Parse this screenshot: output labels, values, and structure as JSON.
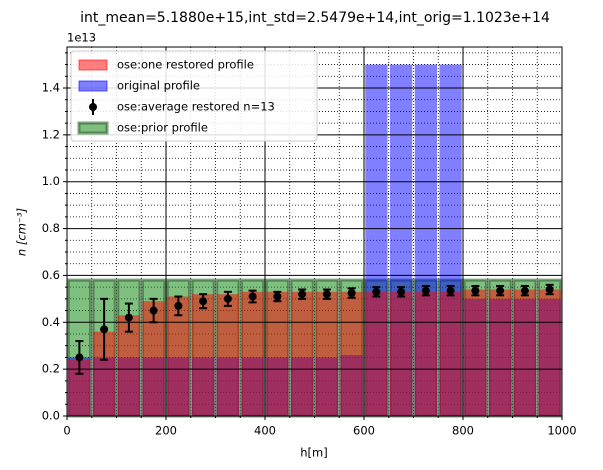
{
  "chart_data": {
    "type": "bar",
    "title": "int_mean=5.1880e+15,int_std=2.5479e+14,int_orig=1.1023e+14",
    "x_label": "h[m]",
    "y_label": "n [cm⁻³]",
    "y_offset": "1e13",
    "x": [
      25,
      75,
      125,
      175,
      225,
      275,
      325,
      375,
      425,
      475,
      525,
      575,
      625,
      675,
      725,
      775,
      825,
      875,
      925,
      975
    ],
    "series": [
      {
        "name": "ose:one restored profile",
        "kind": "bar",
        "color": "#ff0000",
        "values": [
          0.24,
          0.36,
          0.43,
          0.49,
          0.51,
          0.52,
          0.52,
          0.53,
          0.53,
          0.53,
          0.53,
          0.53,
          0.53,
          0.53,
          0.53,
          0.53,
          0.54,
          0.54,
          0.54,
          0.54
        ]
      },
      {
        "name": "original profile",
        "kind": "bar",
        "color": "#0000ff",
        "values": [
          0.25,
          0.25,
          0.25,
          0.25,
          0.25,
          0.25,
          0.25,
          0.25,
          0.25,
          0.25,
          0.25,
          0.26,
          1.5,
          1.5,
          1.5,
          1.5,
          0.5,
          0.5,
          0.5,
          0.5
        ]
      },
      {
        "name": "ose:average restored n=13",
        "kind": "errorbar",
        "color": "#000000",
        "values": [
          0.25,
          0.37,
          0.42,
          0.45,
          0.47,
          0.49,
          0.5,
          0.51,
          0.51,
          0.52,
          0.52,
          0.525,
          0.53,
          0.53,
          0.535,
          0.535,
          0.535,
          0.535,
          0.535,
          0.54
        ],
        "errors": [
          0.07,
          0.13,
          0.06,
          0.05,
          0.04,
          0.03,
          0.03,
          0.025,
          0.02,
          0.02,
          0.02,
          0.02,
          0.02,
          0.02,
          0.02,
          0.02,
          0.02,
          0.02,
          0.02,
          0.02
        ]
      },
      {
        "name": "ose:prior profile",
        "kind": "bar",
        "color": "#008000",
        "values": [
          0.58,
          0.58,
          0.58,
          0.58,
          0.58,
          0.58,
          0.58,
          0.58,
          0.58,
          0.58,
          0.58,
          0.58,
          0.58,
          0.58,
          0.58,
          0.58,
          0.58,
          0.58,
          0.58,
          0.58
        ]
      }
    ],
    "xlim": [
      0,
      1000
    ],
    "xticks": [
      0,
      200,
      400,
      600,
      800,
      1000
    ],
    "xminorticks": [
      50,
      100,
      150,
      250,
      300,
      350,
      450,
      500,
      550,
      650,
      700,
      750,
      850,
      900,
      950
    ],
    "ylim": [
      0,
      1.575
    ],
    "yticks": [
      {
        "value": 0,
        "label": "0.0"
      },
      0.2,
      0.4,
      0.6,
      0.8,
      {
        "value": 1,
        "label": "1.0"
      },
      1.2,
      1.4
    ],
    "yminorticks": [
      0.05,
      0.1,
      0.15,
      0.25,
      0.3,
      0.35,
      0.45,
      0.5,
      0.55,
      0.65,
      0.7,
      0.75,
      0.85,
      0.9,
      0.95,
      1.05,
      1.1,
      1.15,
      1.25,
      1.3,
      1.35,
      1.45,
      1.5,
      1.55
    ],
    "grid": true,
    "legend": "upper left"
  }
}
